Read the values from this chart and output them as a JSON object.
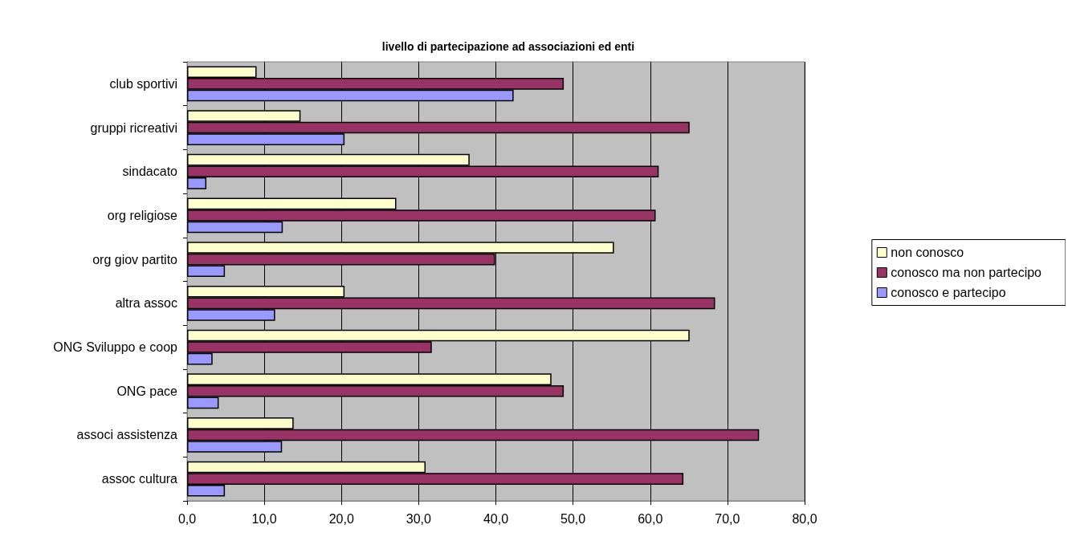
{
  "chart_data": {
    "type": "bar",
    "orientation": "horizontal",
    "title": "livello di partecipazione ad associazioni ed enti",
    "categories": [
      "club sportivi",
      "gruppi ricreativi",
      "sindacato",
      "org religiose",
      "org giov partito",
      "altra assoc",
      "ONG Sviluppo e coop",
      "ONG pace",
      "associ assistenza",
      "assoc cultura"
    ],
    "series": [
      {
        "name": "non conosco",
        "color": "#ffffcc",
        "values": [
          9.0,
          14.7,
          36.6,
          27.1,
          55.3,
          20.4,
          65.1,
          47.2,
          13.8,
          30.9
        ]
      },
      {
        "name": "conosco ma non partecipo",
        "color": "#993366",
        "values": [
          48.8,
          65.1,
          61.1,
          60.7,
          39.9,
          68.4,
          31.7,
          48.8,
          74.1,
          64.3
        ]
      },
      {
        "name": "conosco e partecipo",
        "color": "#9999ff",
        "values": [
          42.3,
          20.4,
          2.5,
          12.4,
          4.9,
          11.4,
          3.3,
          4.1,
          12.3,
          4.9
        ]
      }
    ],
    "xlim": [
      0,
      80
    ],
    "xticks": [
      {
        "value": 0,
        "label": "0,0"
      },
      {
        "value": 10,
        "label": "10,0"
      },
      {
        "value": 20,
        "label": "20,0"
      },
      {
        "value": 30,
        "label": "30,0"
      },
      {
        "value": 40,
        "label": "40,0"
      },
      {
        "value": 50,
        "label": "50,0"
      },
      {
        "value": 60,
        "label": "60,0"
      },
      {
        "value": 70,
        "label": "70,0"
      },
      {
        "value": 80,
        "label": "80,0"
      }
    ],
    "grid": "x",
    "legend": "right"
  }
}
